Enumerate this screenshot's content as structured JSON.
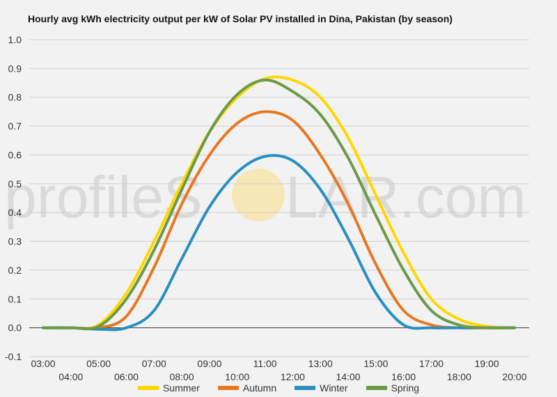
{
  "watermark": {
    "text_left": "profileS",
    "text_right": "LAR.com",
    "sun_color": "#f7e3a1"
  },
  "chart_data": {
    "type": "line",
    "title": "Hourly avg kWh electricity output per kW of Solar PV installed in Dina, Pakistan (by season)",
    "xlabel": "",
    "ylabel": "",
    "ylim": [
      -0.1,
      1.0
    ],
    "yticks": [
      "-0.1",
      "0.0",
      "0.1",
      "0.2",
      "0.3",
      "0.4",
      "0.5",
      "0.6",
      "0.7",
      "0.8",
      "0.9",
      "1.0"
    ],
    "x": [
      "03:00",
      "04:00",
      "05:00",
      "06:00",
      "07:00",
      "08:00",
      "09:00",
      "10:00",
      "11:00",
      "12:00",
      "13:00",
      "14:00",
      "15:00",
      "16:00",
      "17:00",
      "18:00",
      "19:00",
      "20:00"
    ],
    "grid": true,
    "legend_position": "bottom",
    "series": [
      {
        "name": "Summer",
        "color": "#ffd700",
        "values": [
          0.0,
          0.0,
          0.01,
          0.12,
          0.3,
          0.5,
          0.68,
          0.8,
          0.865,
          0.86,
          0.8,
          0.66,
          0.46,
          0.26,
          0.1,
          0.03,
          0.005,
          0.0
        ]
      },
      {
        "name": "Autumn",
        "color": "#e87722",
        "values": [
          0.0,
          0.0,
          0.0,
          0.04,
          0.21,
          0.43,
          0.6,
          0.71,
          0.75,
          0.72,
          0.6,
          0.43,
          0.22,
          0.06,
          0.01,
          0.0,
          0.0,
          0.0
        ]
      },
      {
        "name": "Winter",
        "color": "#2a8fc0",
        "values": [
          0.0,
          0.0,
          -0.005,
          0.0,
          0.06,
          0.24,
          0.42,
          0.54,
          0.595,
          0.58,
          0.48,
          0.31,
          0.12,
          0.01,
          0.0,
          0.0,
          0.0,
          0.0
        ]
      },
      {
        "name": "Spring",
        "color": "#6b9a48",
        "values": [
          0.0,
          0.0,
          0.005,
          0.1,
          0.27,
          0.48,
          0.68,
          0.81,
          0.86,
          0.82,
          0.74,
          0.59,
          0.39,
          0.2,
          0.06,
          0.01,
          0.0,
          0.0
        ]
      }
    ]
  }
}
